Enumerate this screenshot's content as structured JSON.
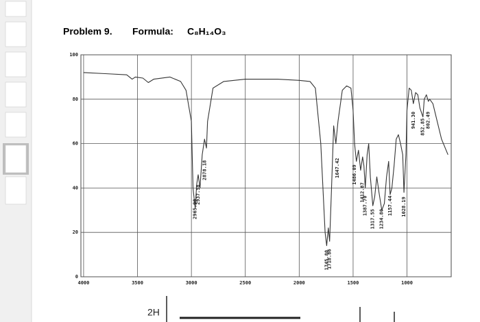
{
  "chart_data": {
    "type": "line",
    "title": "Problem 9.",
    "formula_label": "Formula:",
    "formula": "C₈H₁₄O₃",
    "x": [
      4000,
      3800,
      3600,
      3550,
      3520,
      3450,
      3400,
      3350,
      3200,
      3100,
      3050,
      3000,
      2985,
      2965,
      2950,
      2937,
      2920,
      2900,
      2878,
      2860,
      2850,
      2800,
      2700,
      2500,
      2200,
      2000,
      1900,
      1850,
      1800,
      1760,
      1745,
      1730,
      1718,
      1700,
      1680,
      1660,
      1640,
      1600,
      1560,
      1520,
      1500,
      1486,
      1470,
      1450,
      1430,
      1412,
      1400,
      1387,
      1370,
      1355,
      1340,
      1317,
      1300,
      1280,
      1260,
      1234,
      1210,
      1190,
      1170,
      1157,
      1140,
      1120,
      1100,
      1080,
      1060,
      1040,
      1028,
      1010,
      1000,
      980,
      960,
      941,
      920,
      900,
      880,
      852,
      840,
      820,
      802,
      790,
      760,
      720,
      680,
      620
    ],
    "series": [
      {
        "color": "#333333",
        "values": [
          92,
          91.5,
          91,
          89,
          90,
          89.5,
          87.5,
          89,
          90,
          88,
          84,
          70,
          40,
          31,
          42,
          46,
          40,
          55,
          62,
          58,
          70,
          85,
          88,
          89,
          89,
          88.5,
          88,
          85,
          60,
          20,
          14,
          22,
          16,
          40,
          68,
          60,
          70,
          84,
          86,
          85,
          75,
          60,
          52,
          57,
          48,
          54,
          50,
          40,
          55,
          60,
          45,
          32,
          36,
          45,
          38,
          30,
          33,
          45,
          52,
          37,
          40,
          50,
          62,
          64,
          60,
          55,
          38,
          55,
          75,
          85,
          84,
          78,
          83,
          82,
          76,
          72,
          80,
          82,
          79,
          80,
          78,
          70,
          62,
          55
        ]
      }
    ],
    "xlim": [
      4025,
      590
    ],
    "xticks": [
      4000,
      3500,
      3000,
      2500,
      2000,
      1500,
      1000
    ],
    "ylim": [
      0,
      100
    ],
    "yticks": [
      0,
      20,
      40,
      60,
      80,
      100
    ],
    "grid": true,
    "annotations": [
      {
        "text": "2965.90",
        "x": 2965.9,
        "y": 30.5
      },
      {
        "text": "2937.58",
        "x": 2937.58,
        "y": 37
      },
      {
        "text": "2878.18",
        "x": 2878.18,
        "y": 48
      },
      {
        "text": "1745.80",
        "x": 1745.8,
        "y": 7.5
      },
      {
        "text": "1718.86",
        "x": 1718.86,
        "y": 8
      },
      {
        "text": "1647.42",
        "x": 1647.42,
        "y": 49
      },
      {
        "text": "1486.09",
        "x": 1486.09,
        "y": 46
      },
      {
        "text": "1412.87",
        "x": 1412.87,
        "y": 38
      },
      {
        "text": "1387.70",
        "x": 1387.7,
        "y": 32
      },
      {
        "text": "1317.55",
        "x": 1317.55,
        "y": 26
      },
      {
        "text": "1234.80",
        "x": 1234.8,
        "y": 26
      },
      {
        "text": "1157.44",
        "x": 1157.44,
        "y": 32
      },
      {
        "text": "1028.19",
        "x": 1028.19,
        "y": 31.5
      },
      {
        "text": "941.30",
        "x": 941.3,
        "y": 70.5
      },
      {
        "text": "852.85",
        "x": 852.85,
        "y": 67.5
      },
      {
        "text": "802.49",
        "x": 802.49,
        "y": 70.5
      }
    ]
  },
  "next_page": {
    "label": "2H"
  }
}
